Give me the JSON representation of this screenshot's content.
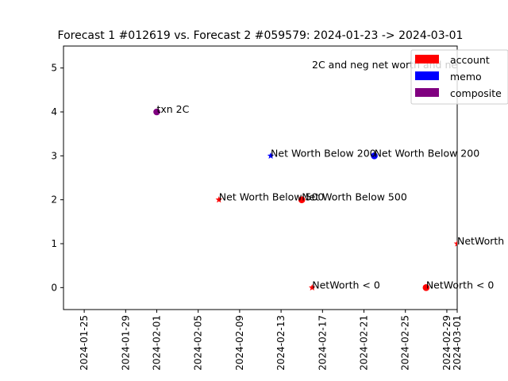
{
  "chart_data": {
    "type": "scatter",
    "title": "Forecast 1 #012619 vs. Forecast 2 #059579: 2024-01-23 -> 2024-03-01",
    "xlabel": "",
    "ylabel": "",
    "x_range": [
      "2024-01-23",
      "2024-03-01"
    ],
    "ylim": [
      -0.5,
      5.5
    ],
    "x_tick_labels": [
      "2024-01-25",
      "2024-01-29",
      "2024-02-01",
      "2024-02-05",
      "2024-02-09",
      "2024-02-13",
      "2024-02-17",
      "2024-02-21",
      "2024-02-25",
      "2024-02-29",
      "2024-03-01"
    ],
    "y_tick_labels": [
      "0",
      "1",
      "2",
      "3",
      "4",
      "5"
    ],
    "grid": false,
    "legend_position": "top-right",
    "legend": [
      {
        "label": "account",
        "color": "#ff0000"
      },
      {
        "label": "memo",
        "color": "#0000ff"
      },
      {
        "label": "composite",
        "color": "#800080"
      }
    ],
    "header_note": "2C and neg net worth and neg net",
    "points": [
      {
        "date": "2024-02-01",
        "y": 4,
        "marker": "circle",
        "color": "#800080",
        "label": "txn 2C"
      },
      {
        "date": "2024-02-07",
        "y": 2,
        "marker": "star",
        "color": "#ff0000",
        "label": "Net Worth Below 500"
      },
      {
        "date": "2024-02-12",
        "y": 3,
        "marker": "star",
        "color": "#0000ff",
        "label": "Net Worth Below 200"
      },
      {
        "date": "2024-02-15",
        "y": 2,
        "marker": "circle",
        "color": "#ff0000",
        "label": "Net Worth Below 500"
      },
      {
        "date": "2024-02-16",
        "y": 0,
        "marker": "star",
        "color": "#ff0000",
        "label": "NetWorth < 0"
      },
      {
        "date": "2024-02-22",
        "y": 3,
        "marker": "circle",
        "color": "#0000ff",
        "label": "Net Worth Below 200"
      },
      {
        "date": "2024-02-27",
        "y": 0,
        "marker": "circle",
        "color": "#ff0000",
        "label": "NetWorth < 0"
      },
      {
        "date": "2024-03-01",
        "y": 1,
        "marker": "star",
        "color": "#ff0000",
        "label": "NetWorth"
      }
    ]
  }
}
